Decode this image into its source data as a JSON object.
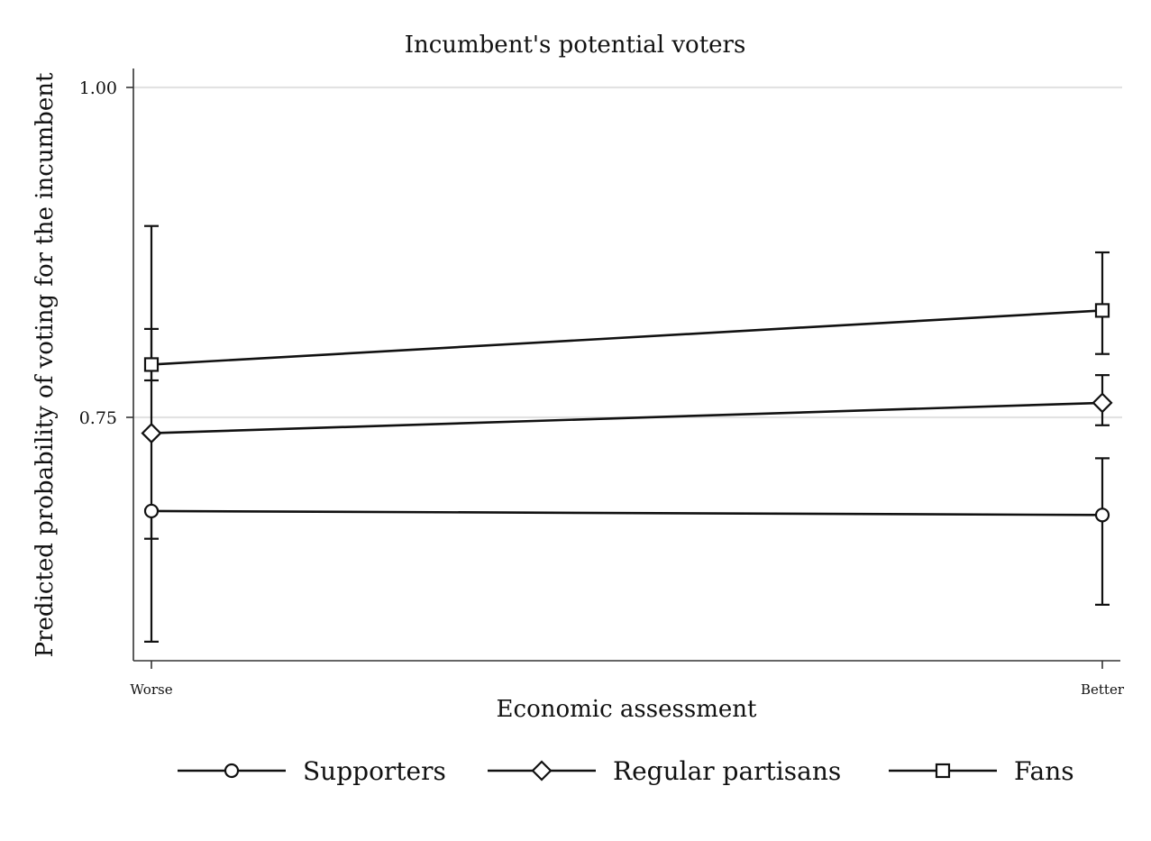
{
  "chart_data": {
    "type": "line",
    "title": "Incumbent's potential voters",
    "xlabel": "Economic assessment",
    "ylabel": "Predicted probability of voting for the incumbent",
    "categories": [
      "Worse",
      "Better"
    ],
    "ylim": [
      0.565,
      1.015
    ],
    "y_ticks": [
      {
        "value": 0.75,
        "label": "0.75"
      },
      {
        "value": 1.0,
        "label": "1.00"
      }
    ],
    "grid": true,
    "legend_position": "bottom",
    "colors": {
      "line": "#111111",
      "grid": "#e2e2e2",
      "axis": "#333333"
    },
    "series": [
      {
        "name": "Supporters",
        "marker": "circle",
        "values": [
          0.679,
          0.676
        ],
        "ci_low": [
          0.58,
          0.608
        ],
        "ci_high": [
          0.68,
          0.719
        ]
      },
      {
        "name": "Regular partisans",
        "marker": "diamond",
        "values": [
          0.738,
          0.761
        ],
        "ci_low": [
          0.658,
          0.744
        ],
        "ci_high": [
          0.817,
          0.782
        ]
      },
      {
        "name": "Fans",
        "marker": "square",
        "values": [
          0.79,
          0.831
        ],
        "ci_low": [
          0.778,
          0.798
        ],
        "ci_high": [
          0.895,
          0.875
        ]
      }
    ]
  }
}
